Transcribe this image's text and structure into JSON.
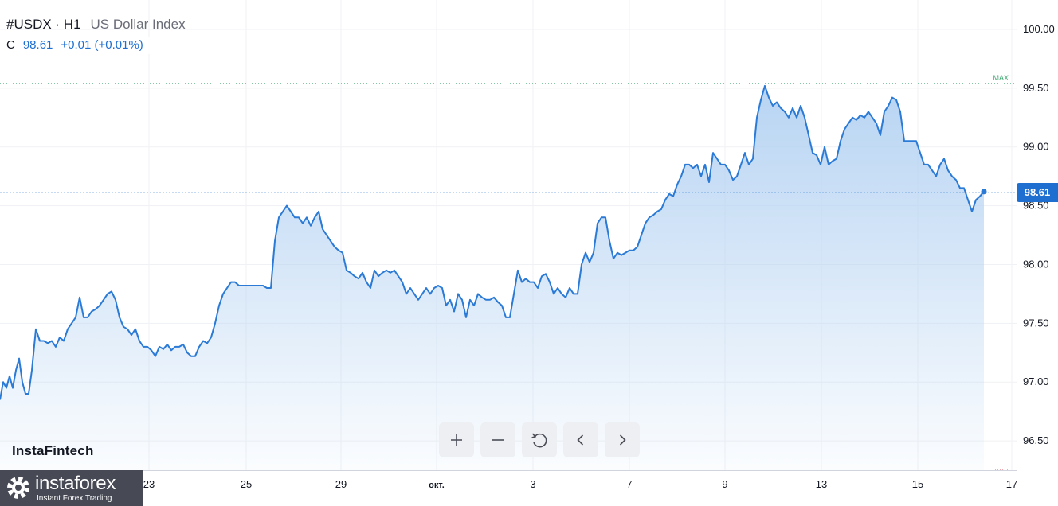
{
  "header": {
    "symbol": "#USDX · H1",
    "name": "US Dollar Index",
    "close_label": "C",
    "close_value": "98.61",
    "change": "+0.01 (+0.01%)"
  },
  "watermark": "InstaFintech",
  "logo": {
    "name": "instaforex",
    "tagline": "Instant Forex Trading"
  },
  "toolbar": {
    "buttons": [
      "zoom-in",
      "zoom-out",
      "reset",
      "scroll-left",
      "scroll-right"
    ]
  },
  "colors": {
    "line": "#2a7ad6",
    "fill_top": "#b4d2f2",
    "last_price": "#1e6fd0",
    "max_line": "#3fa872",
    "min_line": "#e04f5f"
  },
  "chart_data": {
    "type": "area",
    "ylim": [
      96.25,
      100.25
    ],
    "y_ticks": [
      "96.50",
      "97.00",
      "97.50",
      "98.00",
      "98.50",
      "99.00",
      "99.50",
      "100.00"
    ],
    "x_ticks": [
      "23",
      "25",
      "29",
      "окт.",
      "3",
      "7",
      "9",
      "13",
      "15",
      "17"
    ],
    "last_price": 98.61,
    "last_price_label": "98.61",
    "max_label": "MAX",
    "max_value": 99.54,
    "points": [
      [
        0,
        96.85
      ],
      [
        4,
        97.0
      ],
      [
        8,
        96.95
      ],
      [
        12,
        97.05
      ],
      [
        16,
        96.95
      ],
      [
        20,
        97.1
      ],
      [
        24,
        97.2
      ],
      [
        28,
        97.0
      ],
      [
        32,
        96.9
      ],
      [
        36,
        96.9
      ],
      [
        40,
        97.1
      ],
      [
        45,
        97.45
      ],
      [
        50,
        97.35
      ],
      [
        55,
        97.35
      ],
      [
        60,
        97.33
      ],
      [
        65,
        97.35
      ],
      [
        70,
        97.3
      ],
      [
        75,
        97.38
      ],
      [
        80,
        97.35
      ],
      [
        85,
        97.45
      ],
      [
        90,
        97.5
      ],
      [
        95,
        97.55
      ],
      [
        100,
        97.72
      ],
      [
        105,
        97.55
      ],
      [
        110,
        97.55
      ],
      [
        115,
        97.6
      ],
      [
        120,
        97.62
      ],
      [
        125,
        97.65
      ],
      [
        130,
        97.7
      ],
      [
        135,
        97.75
      ],
      [
        140,
        97.77
      ],
      [
        145,
        97.7
      ],
      [
        150,
        97.55
      ],
      [
        155,
        97.47
      ],
      [
        160,
        97.45
      ],
      [
        165,
        97.4
      ],
      [
        170,
        97.45
      ],
      [
        175,
        97.35
      ],
      [
        180,
        97.3
      ],
      [
        185,
        97.3
      ],
      [
        190,
        97.27
      ],
      [
        195,
        97.22
      ],
      [
        200,
        97.3
      ],
      [
        205,
        97.28
      ],
      [
        210,
        97.32
      ],
      [
        215,
        97.27
      ],
      [
        220,
        97.3
      ],
      [
        225,
        97.3
      ],
      [
        230,
        97.32
      ],
      [
        235,
        97.25
      ],
      [
        240,
        97.22
      ],
      [
        245,
        97.22
      ],
      [
        250,
        97.3
      ],
      [
        255,
        97.35
      ],
      [
        260,
        97.33
      ],
      [
        265,
        97.38
      ],
      [
        270,
        97.5
      ],
      [
        275,
        97.65
      ],
      [
        280,
        97.75
      ],
      [
        285,
        97.8
      ],
      [
        290,
        97.85
      ],
      [
        295,
        97.85
      ],
      [
        300,
        97.82
      ],
      [
        305,
        97.82
      ],
      [
        310,
        97.82
      ],
      [
        320,
        97.82
      ],
      [
        330,
        97.82
      ],
      [
        335,
        97.8
      ],
      [
        340,
        97.8
      ],
      [
        345,
        98.2
      ],
      [
        350,
        98.4
      ],
      [
        355,
        98.45
      ],
      [
        360,
        98.5
      ],
      [
        365,
        98.45
      ],
      [
        370,
        98.4
      ],
      [
        375,
        98.4
      ],
      [
        380,
        98.35
      ],
      [
        385,
        98.4
      ],
      [
        390,
        98.33
      ],
      [
        395,
        98.4
      ],
      [
        400,
        98.45
      ],
      [
        405,
        98.3
      ],
      [
        410,
        98.25
      ],
      [
        415,
        98.2
      ],
      [
        420,
        98.15
      ],
      [
        425,
        98.12
      ],
      [
        430,
        98.1
      ],
      [
        435,
        97.95
      ],
      [
        440,
        97.93
      ],
      [
        445,
        97.9
      ],
      [
        450,
        97.88
      ],
      [
        455,
        97.93
      ],
      [
        460,
        97.85
      ],
      [
        465,
        97.8
      ],
      [
        470,
        97.95
      ],
      [
        475,
        97.9
      ],
      [
        480,
        97.93
      ],
      [
        485,
        97.95
      ],
      [
        490,
        97.93
      ],
      [
        495,
        97.95
      ],
      [
        500,
        97.9
      ],
      [
        505,
        97.85
      ],
      [
        510,
        97.75
      ],
      [
        515,
        97.8
      ],
      [
        520,
        97.75
      ],
      [
        525,
        97.7
      ],
      [
        530,
        97.75
      ],
      [
        535,
        97.8
      ],
      [
        540,
        97.75
      ],
      [
        545,
        97.8
      ],
      [
        550,
        97.82
      ],
      [
        555,
        97.8
      ],
      [
        560,
        97.65
      ],
      [
        565,
        97.7
      ],
      [
        570,
        97.6
      ],
      [
        575,
        97.75
      ],
      [
        580,
        97.7
      ],
      [
        585,
        97.55
      ],
      [
        590,
        97.7
      ],
      [
        595,
        97.65
      ],
      [
        600,
        97.75
      ],
      [
        605,
        97.72
      ],
      [
        610,
        97.7
      ],
      [
        615,
        97.7
      ],
      [
        620,
        97.72
      ],
      [
        625,
        97.68
      ],
      [
        630,
        97.65
      ],
      [
        635,
        97.55
      ],
      [
        640,
        97.55
      ],
      [
        645,
        97.75
      ],
      [
        650,
        97.95
      ],
      [
        655,
        97.85
      ],
      [
        660,
        97.88
      ],
      [
        665,
        97.85
      ],
      [
        670,
        97.85
      ],
      [
        675,
        97.8
      ],
      [
        680,
        97.9
      ],
      [
        685,
        97.92
      ],
      [
        690,
        97.85
      ],
      [
        695,
        97.75
      ],
      [
        700,
        97.8
      ],
      [
        705,
        97.75
      ],
      [
        710,
        97.72
      ],
      [
        715,
        97.8
      ],
      [
        720,
        97.75
      ],
      [
        725,
        97.75
      ],
      [
        730,
        98.0
      ],
      [
        735,
        98.1
      ],
      [
        740,
        98.02
      ],
      [
        745,
        98.1
      ],
      [
        750,
        98.35
      ],
      [
        755,
        98.4
      ],
      [
        760,
        98.4
      ],
      [
        765,
        98.2
      ],
      [
        770,
        98.05
      ],
      [
        775,
        98.1
      ],
      [
        780,
        98.08
      ],
      [
        785,
        98.1
      ],
      [
        790,
        98.12
      ],
      [
        795,
        98.12
      ],
      [
        800,
        98.15
      ],
      [
        805,
        98.25
      ],
      [
        810,
        98.35
      ],
      [
        815,
        98.4
      ],
      [
        820,
        98.42
      ],
      [
        825,
        98.45
      ],
      [
        830,
        98.47
      ],
      [
        835,
        98.55
      ],
      [
        840,
        98.6
      ],
      [
        845,
        98.58
      ],
      [
        850,
        98.68
      ],
      [
        855,
        98.75
      ],
      [
        860,
        98.85
      ],
      [
        865,
        98.85
      ],
      [
        870,
        98.82
      ],
      [
        875,
        98.85
      ],
      [
        880,
        98.75
      ],
      [
        885,
        98.85
      ],
      [
        890,
        98.7
      ],
      [
        895,
        98.95
      ],
      [
        900,
        98.9
      ],
      [
        905,
        98.85
      ],
      [
        910,
        98.85
      ],
      [
        915,
        98.8
      ],
      [
        920,
        98.72
      ],
      [
        925,
        98.75
      ],
      [
        930,
        98.85
      ],
      [
        935,
        98.95
      ],
      [
        940,
        98.85
      ],
      [
        945,
        98.9
      ],
      [
        950,
        99.25
      ],
      [
        955,
        99.4
      ],
      [
        960,
        99.52
      ],
      [
        965,
        99.42
      ],
      [
        970,
        99.35
      ],
      [
        975,
        99.38
      ],
      [
        980,
        99.33
      ],
      [
        985,
        99.3
      ],
      [
        990,
        99.25
      ],
      [
        995,
        99.33
      ],
      [
        1000,
        99.25
      ],
      [
        1005,
        99.35
      ],
      [
        1010,
        99.25
      ],
      [
        1015,
        99.1
      ],
      [
        1020,
        98.95
      ],
      [
        1025,
        98.93
      ],
      [
        1030,
        98.85
      ],
      [
        1035,
        99.0
      ],
      [
        1040,
        98.85
      ],
      [
        1045,
        98.88
      ],
      [
        1050,
        98.9
      ],
      [
        1055,
        99.05
      ],
      [
        1060,
        99.15
      ],
      [
        1065,
        99.2
      ],
      [
        1070,
        99.25
      ],
      [
        1075,
        99.23
      ],
      [
        1080,
        99.27
      ],
      [
        1085,
        99.25
      ],
      [
        1090,
        99.3
      ],
      [
        1095,
        99.25
      ],
      [
        1100,
        99.2
      ],
      [
        1105,
        99.1
      ],
      [
        1110,
        99.3
      ],
      [
        1115,
        99.35
      ],
      [
        1120,
        99.42
      ],
      [
        1125,
        99.4
      ],
      [
        1130,
        99.3
      ],
      [
        1135,
        99.05
      ],
      [
        1140,
        99.05
      ],
      [
        1145,
        99.05
      ],
      [
        1150,
        99.05
      ],
      [
        1155,
        98.95
      ],
      [
        1160,
        98.85
      ],
      [
        1165,
        98.85
      ],
      [
        1170,
        98.8
      ],
      [
        1175,
        98.75
      ],
      [
        1180,
        98.85
      ],
      [
        1185,
        98.9
      ],
      [
        1190,
        98.8
      ],
      [
        1195,
        98.75
      ],
      [
        1200,
        98.72
      ],
      [
        1205,
        98.65
      ],
      [
        1210,
        98.65
      ],
      [
        1215,
        98.55
      ],
      [
        1220,
        98.45
      ],
      [
        1225,
        98.55
      ],
      [
        1230,
        98.58
      ],
      [
        1235,
        98.62
      ]
    ]
  }
}
